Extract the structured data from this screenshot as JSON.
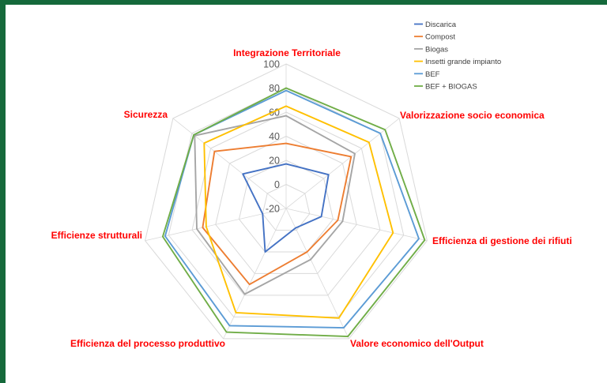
{
  "page": {
    "border_color": "#15693B",
    "background": "#FFFFFF"
  },
  "chart_data": {
    "type": "radar",
    "axes": [
      "Integrazione Territoriale",
      "Valorizzazione socio economica",
      "Efficienza di gestione dei rifiuti",
      "Valore economico dell'Output",
      "Efficienza del processo produttivo",
      "Efficienze strutturali",
      "Sicurezza"
    ],
    "series": [
      {
        "name": "Discarica",
        "color": "#4472C4",
        "values": [
          17,
          25,
          10,
          -2,
          20,
          0,
          26
        ]
      },
      {
        "name": "Compost",
        "color": "#ED7D31",
        "values": [
          34,
          49,
          24,
          20,
          50,
          51,
          56
        ]
      },
      {
        "name": "Biogas",
        "color": "#A5A5A5",
        "values": [
          57,
          53,
          28,
          27,
          59,
          56,
          77
        ]
      },
      {
        "name": "Insetti grande impianto",
        "color": "#FFC000",
        "values": [
          65,
          68,
          71,
          81,
          76,
          48,
          67
        ]
      },
      {
        "name": "BEF",
        "color": "#5B9BD5",
        "values": [
          78,
          80,
          93,
          90,
          88,
          83,
          78
        ]
      },
      {
        "name": "BEF + BIOGAS",
        "color": "#70AD47",
        "values": [
          80,
          85,
          98,
          98,
          94,
          85,
          78
        ]
      }
    ],
    "radial_axis": {
      "min": -20,
      "max": 100,
      "step": 20,
      "tick_labels": [
        "100",
        "80",
        "60",
        "40",
        "20",
        "0",
        "-20"
      ]
    },
    "grid": true,
    "legend_position": "top-right",
    "style": {
      "axis_label_color": "#FF0000",
      "tick_label_color": "#595959",
      "grid_color": "#D9D9D9",
      "legend_text_color": "#404040"
    }
  }
}
